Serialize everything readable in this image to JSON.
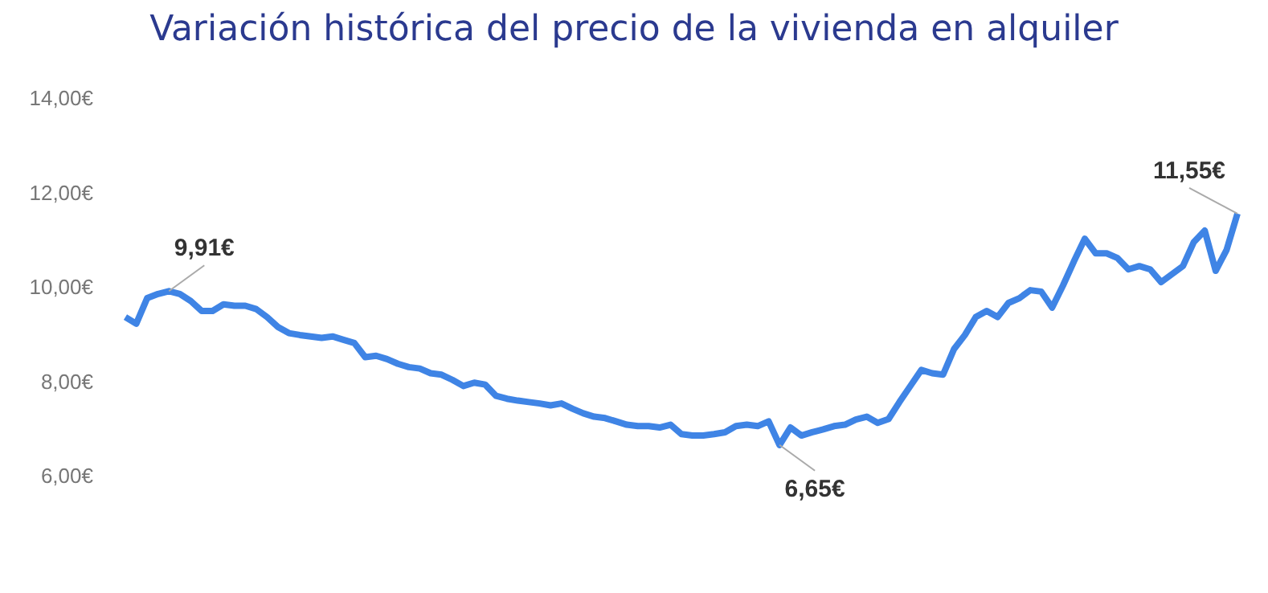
{
  "chart_data": {
    "type": "line",
    "title": "Variación histórica del precio de la vivienda en alquiler",
    "categories": [
      null,
      null,
      null,
      null,
      null,
      null,
      null,
      null,
      null,
      null,
      null,
      null,
      null,
      null,
      null,
      null,
      null,
      null,
      null,
      null,
      null,
      null,
      null,
      null,
      null,
      null,
      null,
      null,
      null,
      null,
      null,
      null,
      null,
      null,
      null,
      null,
      null,
      null,
      null,
      null,
      null,
      null,
      null,
      null,
      null,
      null,
      null,
      null,
      null,
      null,
      null,
      null,
      null,
      null,
      null,
      null,
      null,
      null,
      null,
      null,
      null,
      null,
      null,
      null,
      null,
      null,
      null,
      null,
      null,
      null,
      null,
      null,
      null,
      null,
      null,
      null,
      null,
      null,
      null,
      null,
      null,
      null,
      null,
      null,
      null,
      null,
      null,
      null,
      null,
      null,
      null,
      null,
      null,
      null,
      null,
      null,
      null,
      null,
      null,
      null,
      null,
      null,
      null
    ],
    "series": [
      {
        "color": "#3f84e5",
        "values": [
          9.36,
          9.22,
          9.76,
          9.85,
          9.91,
          9.85,
          9.7,
          9.49,
          9.49,
          9.63,
          9.6,
          9.6,
          9.53,
          9.36,
          9.15,
          9.02,
          8.98,
          8.95,
          8.92,
          8.95,
          8.88,
          8.81,
          8.51,
          8.54,
          8.47,
          8.37,
          8.3,
          8.27,
          8.17,
          8.14,
          8.03,
          7.9,
          7.97,
          7.93,
          7.69,
          7.63,
          7.59,
          7.56,
          7.53,
          7.49,
          7.53,
          7.42,
          7.32,
          7.25,
          7.22,
          7.15,
          7.08,
          7.05,
          7.05,
          7.02,
          7.08,
          6.88,
          6.85,
          6.85,
          6.88,
          6.92,
          7.05,
          7.08,
          7.05,
          7.15,
          6.65,
          7.02,
          6.85,
          6.92,
          6.98,
          7.05,
          7.08,
          7.19,
          7.25,
          7.12,
          7.2,
          7.56,
          7.9,
          8.24,
          8.17,
          8.14,
          8.68,
          8.98,
          9.36,
          9.49,
          9.36,
          9.66,
          9.76,
          9.93,
          9.9,
          9.56,
          10.03,
          10.54,
          11.02,
          10.71,
          10.71,
          10.61,
          10.37,
          10.44,
          10.37,
          10.1,
          10.27,
          10.44,
          10.95,
          11.19,
          10.34,
          10.78,
          11.55
        ],
        "value_labels": [
          null,
          null,
          null,
          null,
          "9,91€",
          null,
          null,
          null,
          null,
          null,
          null,
          null,
          null,
          null,
          null,
          null,
          null,
          null,
          null,
          null,
          null,
          null,
          null,
          null,
          null,
          null,
          null,
          null,
          null,
          null,
          null,
          null,
          null,
          null,
          null,
          null,
          null,
          null,
          null,
          null,
          null,
          null,
          null,
          null,
          null,
          null,
          null,
          null,
          null,
          null,
          null,
          null,
          null,
          null,
          null,
          null,
          null,
          null,
          null,
          null,
          "6,65€",
          null,
          null,
          null,
          null,
          null,
          null,
          null,
          null,
          null,
          null,
          null,
          null,
          null,
          null,
          null,
          null,
          null,
          null,
          null,
          null,
          null,
          null,
          null,
          null,
          null,
          null,
          null,
          null,
          null,
          null,
          null,
          null,
          null,
          null,
          null,
          null,
          null,
          null,
          null,
          null,
          null,
          "11,55€"
        ]
      }
    ],
    "ylim": [
      6,
      14
    ],
    "yticks": [
      {
        "value": 6,
        "label": "6,00€"
      },
      {
        "value": 8,
        "label": "8,00€"
      },
      {
        "value": 10,
        "label": "10,00€"
      },
      {
        "value": 12,
        "label": "12,00€"
      },
      {
        "value": 14,
        "label": "14,00€"
      }
    ],
    "grid": false,
    "legend": false,
    "marker": "none",
    "line_style": "solid"
  }
}
